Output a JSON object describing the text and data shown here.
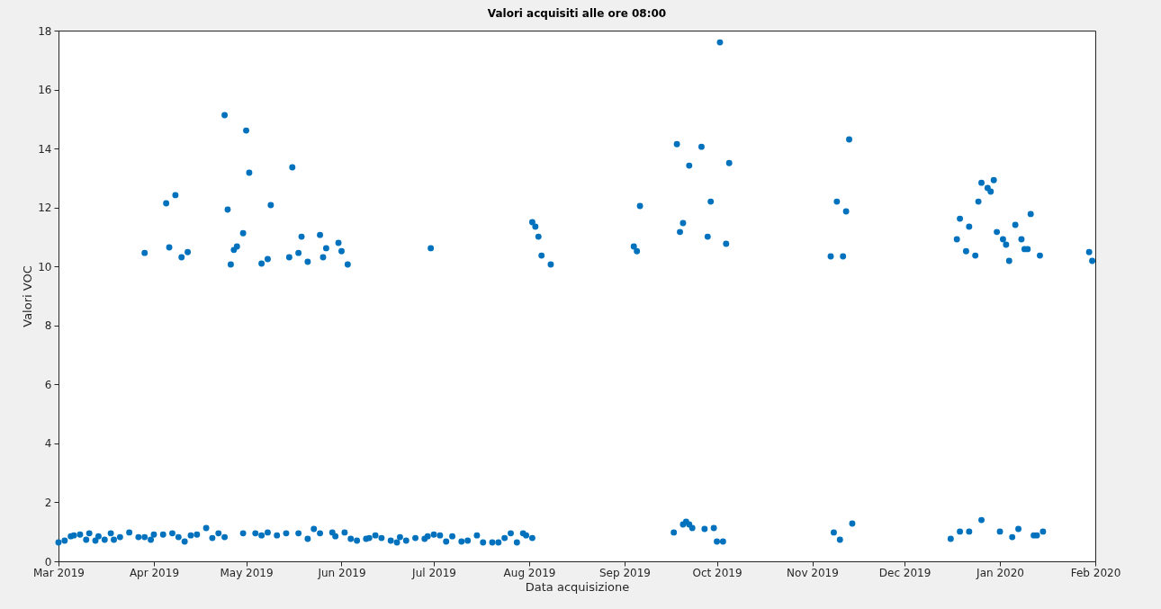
{
  "chart_data": {
    "type": "scatter",
    "title": "Valori acquisiti alle ore 08:00",
    "xlabel": "Data acquisizione",
    "ylabel": "Valori VOC",
    "marker": "circle",
    "grid": false,
    "legend": false,
    "xlim": [
      "2019-03-01",
      "2020-02-01"
    ],
    "xticks": [
      {
        "value": "2019-03-01",
        "label": "Mar 2019"
      },
      {
        "value": "2019-04-01",
        "label": "Apr 2019"
      },
      {
        "value": "2019-05-01",
        "label": "May 2019"
      },
      {
        "value": "2019-06-01",
        "label": "Jun 2019"
      },
      {
        "value": "2019-07-01",
        "label": "Jul 2019"
      },
      {
        "value": "2019-08-01",
        "label": "Aug 2019"
      },
      {
        "value": "2019-09-01",
        "label": "Sep 2019"
      },
      {
        "value": "2019-10-01",
        "label": "Oct 2019"
      },
      {
        "value": "2019-11-01",
        "label": "Nov 2019"
      },
      {
        "value": "2019-12-01",
        "label": "Dec 2019"
      },
      {
        "value": "2020-01-01",
        "label": "Jan 2020"
      },
      {
        "value": "2020-02-01",
        "label": "Feb 2020"
      }
    ],
    "ylim": [
      0,
      18
    ],
    "yticks": [
      0,
      2,
      4,
      6,
      8,
      10,
      12,
      14,
      16,
      18
    ],
    "series": [
      {
        "color": "#0072bd",
        "x": [
          "2019-03-29",
          "2019-04-05",
          "2019-04-06",
          "2019-04-08",
          "2019-04-10",
          "2019-04-12",
          "2019-04-24",
          "2019-04-25",
          "2019-04-26",
          "2019-04-27",
          "2019-04-28",
          "2019-04-30",
          "2019-05-01",
          "2019-05-02",
          "2019-05-06",
          "2019-05-08",
          "2019-05-09",
          "2019-05-15",
          "2019-05-16",
          "2019-05-18",
          "2019-05-19",
          "2019-05-21",
          "2019-05-25",
          "2019-05-26",
          "2019-05-27",
          "2019-05-31",
          "2019-06-01",
          "2019-06-03",
          "2019-06-30",
          "2019-08-02",
          "2019-08-03",
          "2019-08-04",
          "2019-08-05",
          "2019-08-08",
          "2019-09-04",
          "2019-09-05",
          "2019-09-06",
          "2019-09-18",
          "2019-09-19",
          "2019-09-20",
          "2019-09-22",
          "2019-09-26",
          "2019-09-28",
          "2019-09-29",
          "2019-10-02",
          "2019-10-04",
          "2019-10-05",
          "2019-11-07",
          "2019-11-09",
          "2019-11-11",
          "2019-11-12",
          "2019-11-13",
          "2019-12-18",
          "2019-12-19",
          "2019-12-21",
          "2019-12-22",
          "2019-12-24",
          "2019-12-25",
          "2019-12-26",
          "2019-12-28",
          "2019-12-29",
          "2019-12-30",
          "2019-12-31",
          "2020-01-02",
          "2020-01-03",
          "2020-01-04",
          "2020-01-06",
          "2020-01-08",
          "2020-01-09",
          "2020-01-10",
          "2020-01-11",
          "2020-01-14",
          "2020-01-30",
          "2020-01-31",
          "2019-03-01",
          "2019-03-03",
          "2019-03-05",
          "2019-03-06",
          "2019-03-08",
          "2019-03-10",
          "2019-03-11",
          "2019-03-13",
          "2019-03-14",
          "2019-03-16",
          "2019-03-18",
          "2019-03-19",
          "2019-03-21",
          "2019-03-24",
          "2019-03-27",
          "2019-03-29",
          "2019-03-31",
          "2019-04-01",
          "2019-04-04",
          "2019-04-07",
          "2019-04-09",
          "2019-04-11",
          "2019-04-13",
          "2019-04-15",
          "2019-04-18",
          "2019-04-20",
          "2019-04-22",
          "2019-04-24",
          "2019-04-30",
          "2019-05-04",
          "2019-05-06",
          "2019-05-08",
          "2019-05-11",
          "2019-05-14",
          "2019-05-18",
          "2019-05-21",
          "2019-05-23",
          "2019-05-25",
          "2019-05-29",
          "2019-05-30",
          "2019-06-02",
          "2019-06-04",
          "2019-06-06",
          "2019-06-09",
          "2019-06-10",
          "2019-06-12",
          "2019-06-14",
          "2019-06-17",
          "2019-06-19",
          "2019-06-20",
          "2019-06-22",
          "2019-06-25",
          "2019-06-28",
          "2019-06-29",
          "2019-07-01",
          "2019-07-03",
          "2019-07-05",
          "2019-07-07",
          "2019-07-10",
          "2019-07-12",
          "2019-07-15",
          "2019-07-17",
          "2019-07-20",
          "2019-07-22",
          "2019-07-24",
          "2019-07-26",
          "2019-07-28",
          "2019-07-30",
          "2019-07-31",
          "2019-08-02",
          "2019-09-17",
          "2019-09-20",
          "2019-09-21",
          "2019-09-22",
          "2019-09-23",
          "2019-09-27",
          "2019-09-30",
          "2019-10-01",
          "2019-10-03",
          "2019-11-08",
          "2019-11-10",
          "2019-11-14",
          "2019-12-16",
          "2019-12-19",
          "2019-12-22",
          "2019-12-26",
          "2020-01-01",
          "2020-01-05",
          "2020-01-07",
          "2020-01-12",
          "2020-01-13",
          "2020-01-15"
        ],
        "values": [
          10.46,
          12.14,
          10.65,
          12.42,
          10.31,
          10.49,
          15.13,
          11.93,
          10.07,
          10.56,
          10.68,
          11.13,
          14.61,
          13.18,
          10.1,
          10.25,
          12.08,
          10.31,
          13.36,
          10.46,
          11.01,
          10.16,
          11.07,
          10.31,
          10.62,
          10.8,
          10.52,
          10.07,
          10.62,
          11.5,
          11.35,
          11.01,
          10.37,
          10.07,
          10.68,
          10.52,
          12.05,
          14.15,
          11.17,
          11.47,
          13.42,
          14.06,
          11.01,
          12.2,
          17.6,
          10.77,
          13.51,
          10.34,
          12.2,
          10.34,
          11.87,
          14.31,
          10.92,
          11.62,
          10.52,
          11.35,
          10.37,
          12.2,
          12.84,
          12.66,
          12.54,
          12.93,
          11.17,
          10.92,
          10.74,
          10.19,
          11.41,
          10.92,
          10.59,
          10.59,
          11.78,
          10.37,
          10.49,
          10.19,
          0.64,
          0.7,
          0.85,
          0.88,
          0.91,
          0.73,
          0.95,
          0.7,
          0.85,
          0.73,
          0.95,
          0.73,
          0.82,
          0.98,
          0.82,
          0.82,
          0.73,
          0.91,
          0.91,
          0.95,
          0.82,
          0.67,
          0.88,
          0.91,
          1.13,
          0.79,
          0.95,
          0.82,
          0.95,
          0.95,
          0.88,
          0.98,
          0.88,
          0.95,
          0.95,
          0.76,
          1.1,
          0.95,
          0.98,
          0.85,
          0.98,
          0.76,
          0.7,
          0.76,
          0.79,
          0.88,
          0.79,
          0.7,
          0.64,
          0.82,
          0.7,
          0.79,
          0.76,
          0.85,
          0.91,
          0.88,
          0.67,
          0.85,
          0.67,
          0.7,
          0.88,
          0.64,
          0.64,
          0.64,
          0.79,
          0.95,
          0.64,
          0.95,
          0.88,
          0.79,
          0.98,
          1.25,
          1.34,
          1.25,
          1.13,
          1.1,
          1.13,
          0.67,
          0.67,
          0.98,
          0.73,
          1.28,
          0.76,
          1.01,
          1.01,
          1.4,
          1.01,
          0.82,
          1.1,
          0.88,
          0.88,
          1.01
        ]
      }
    ]
  }
}
